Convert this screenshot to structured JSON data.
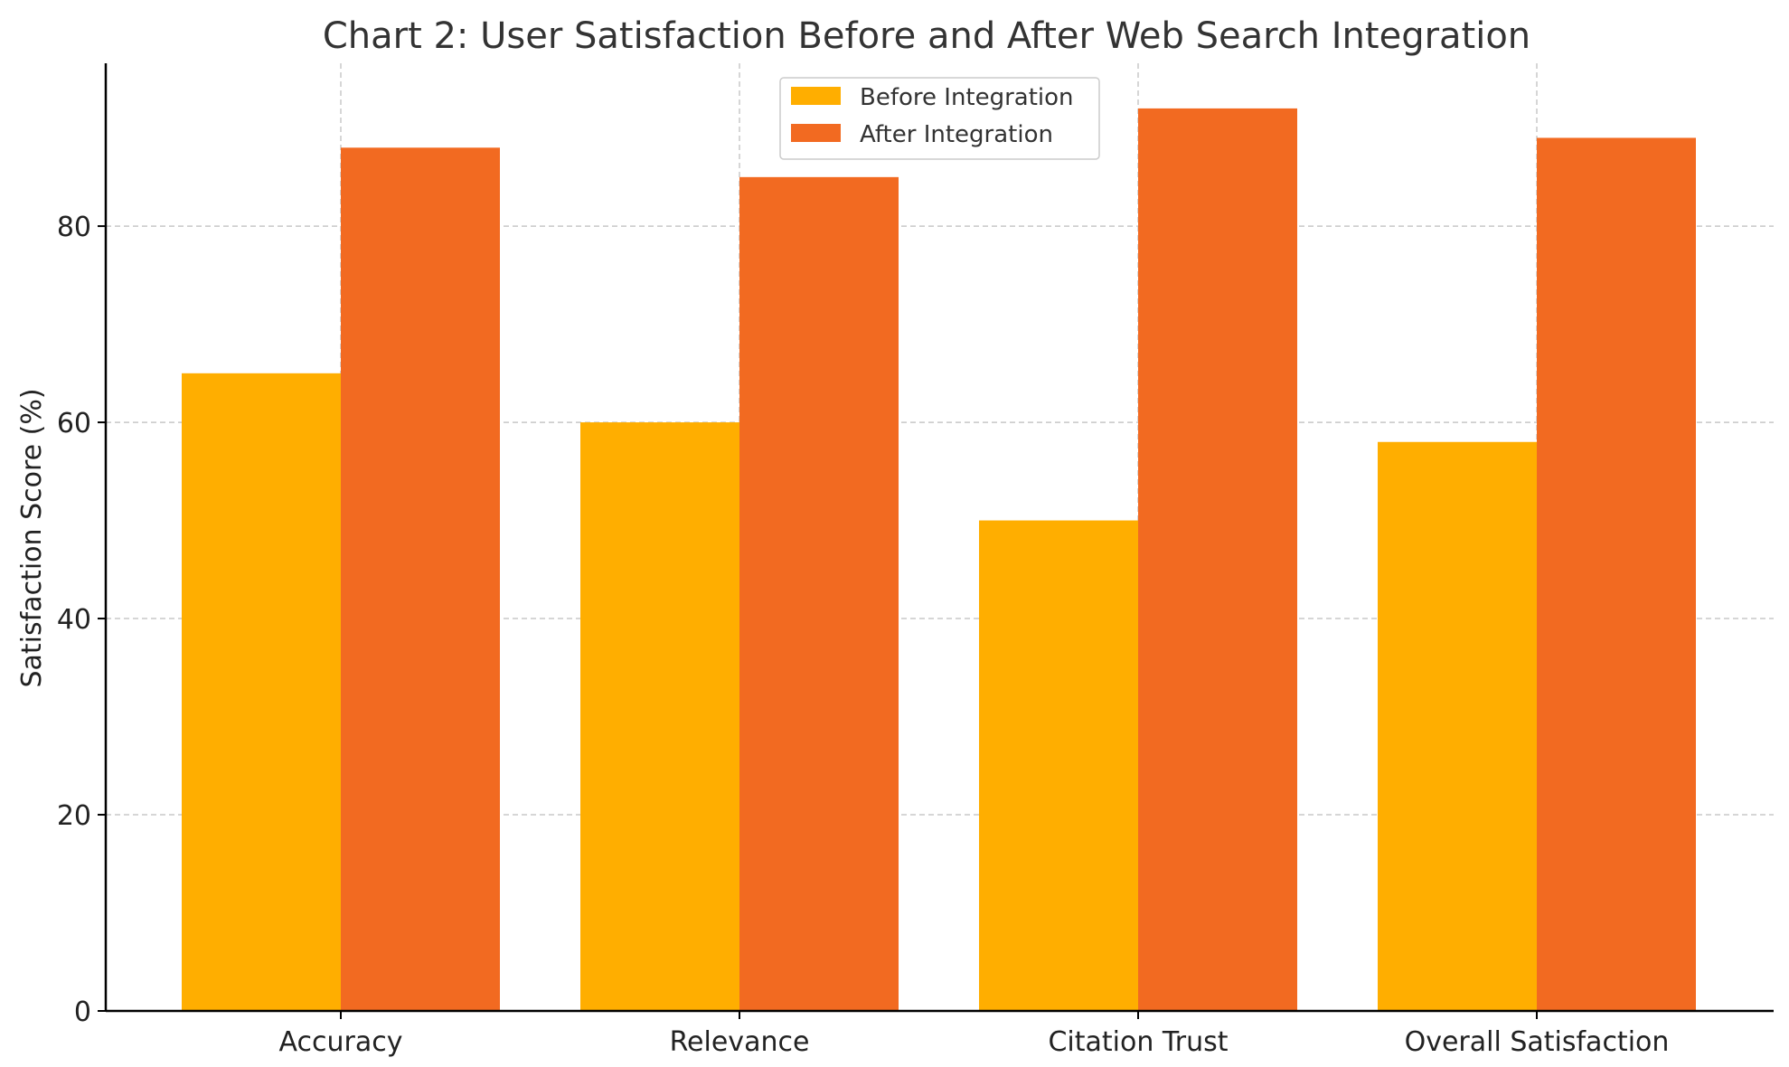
{
  "chart_data": {
    "type": "bar",
    "title": "Chart 2: User Satisfaction Before and After Web Search Integration",
    "xlabel": "",
    "ylabel": "Satisfaction Score (%)",
    "categories": [
      "Accuracy",
      "Relevance",
      "Citation Trust",
      "Overall Satisfaction"
    ],
    "series": [
      {
        "name": "Before Integration",
        "color": "#FFAE00",
        "values": [
          65,
          60,
          50,
          58
        ]
      },
      {
        "name": "After Integration",
        "color": "#F26A21",
        "values": [
          88,
          85,
          92,
          89
        ]
      }
    ],
    "ylim": [
      0,
      96.6
    ],
    "yticks": [
      0,
      20,
      40,
      60,
      80
    ],
    "grid": true,
    "legend_position": "top-center"
  }
}
